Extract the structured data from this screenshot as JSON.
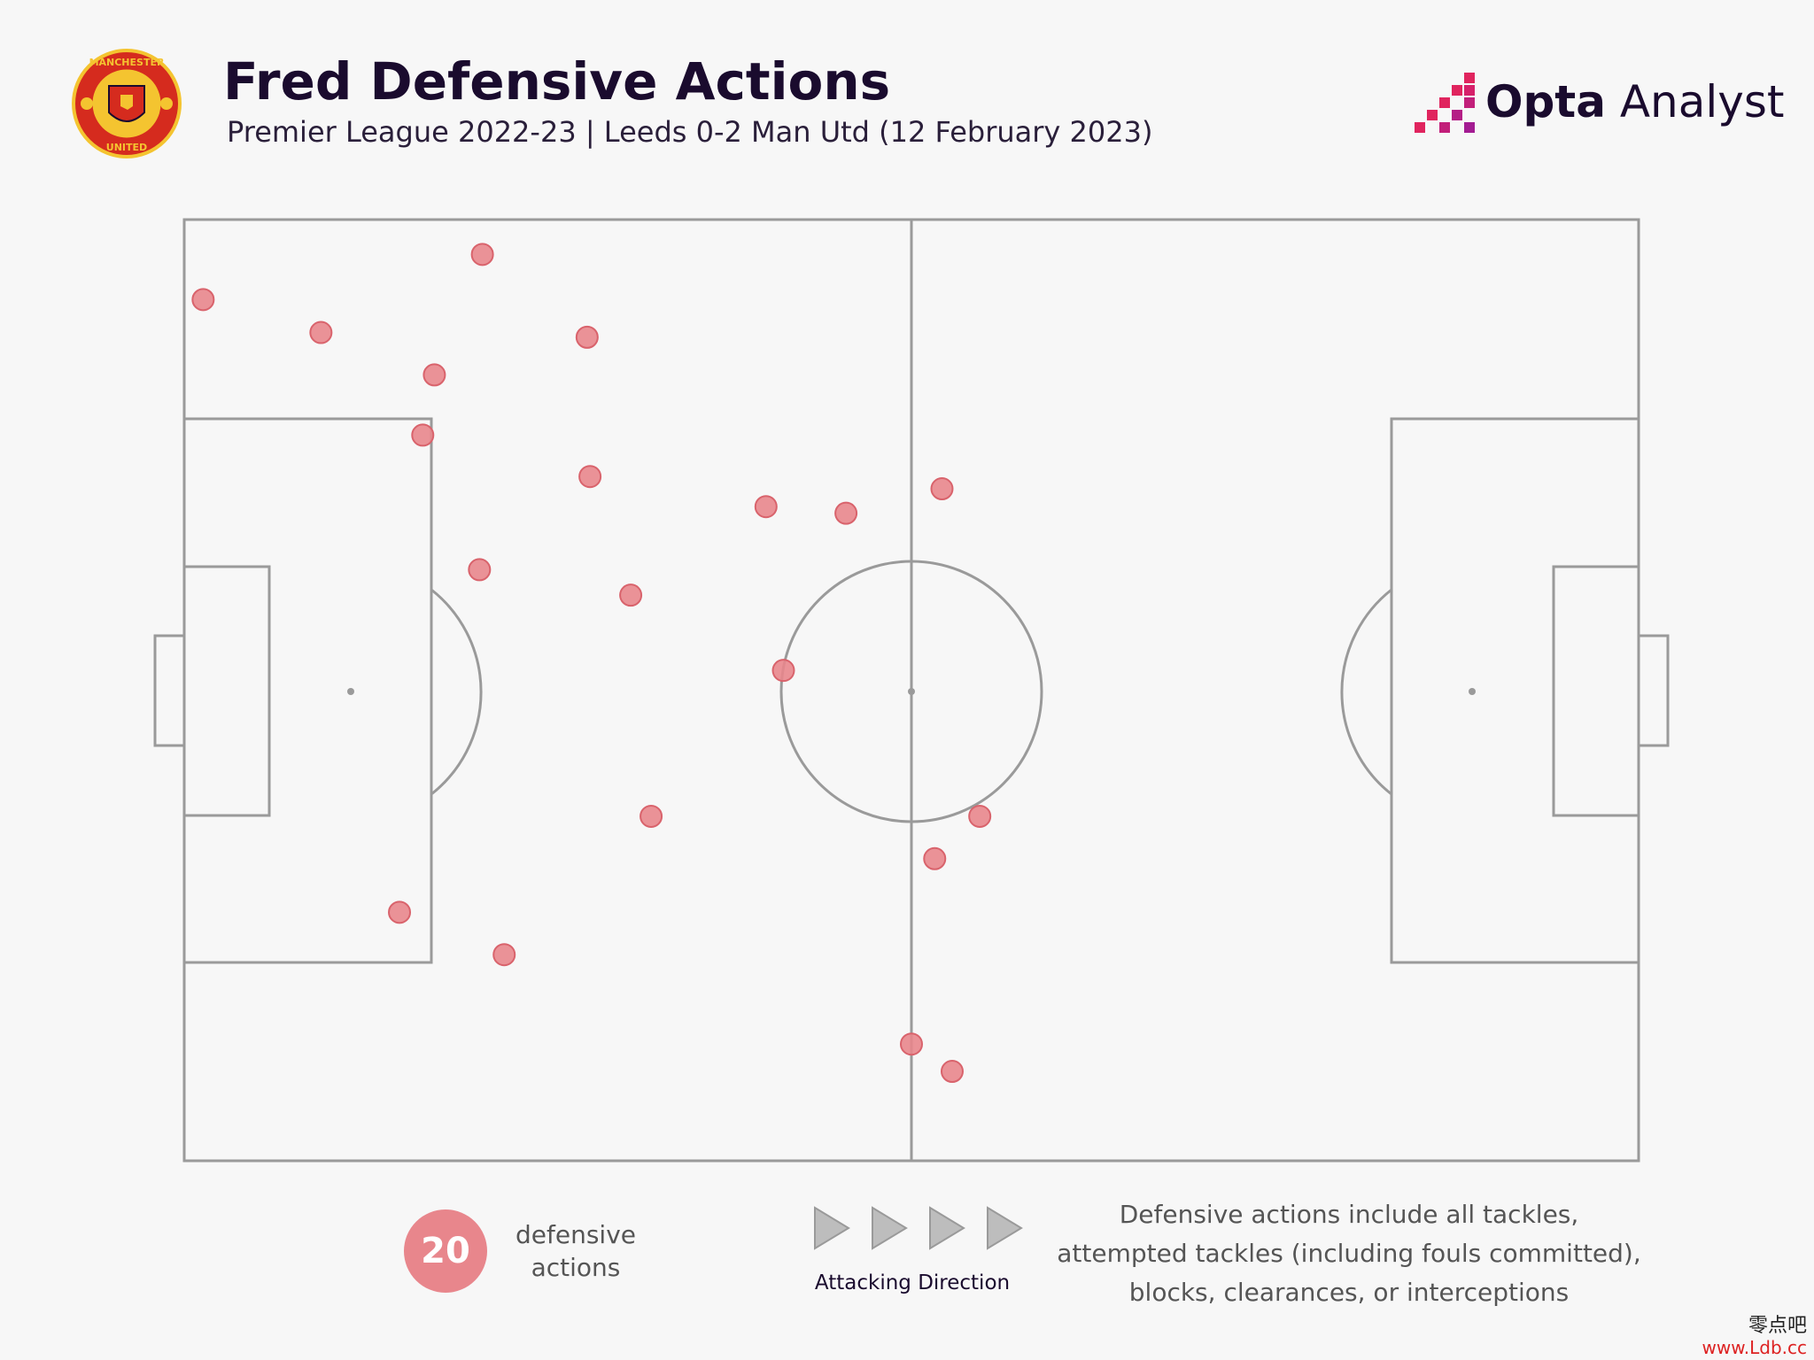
{
  "header": {
    "title": "Fred Defensive Actions",
    "subtitle": "Premier League 2022-23 | Leeds 0-2 Man Utd (12 February 2023)",
    "brand_bold": "Opta",
    "brand_rest": " Analyst",
    "crest_ring_top": "MANCHESTER",
    "crest_ring_bottom": "UNITED"
  },
  "chart_data": {
    "type": "scatter",
    "title": "Fred Defensive Actions",
    "x_axis": "pitch length (0 = own goal line, 100 = opponent goal line)",
    "y_axis": "pitch width (0 = top touchline, 100 = bottom touchline)",
    "xlim": [
      0,
      100
    ],
    "ylim": [
      0,
      100
    ],
    "marker_color": "#e8868c",
    "points": [
      {
        "x": 1.3,
        "y": 8.5
      },
      {
        "x": 20.5,
        "y": 3.7
      },
      {
        "x": 9.4,
        "y": 12.0
      },
      {
        "x": 27.7,
        "y": 12.5
      },
      {
        "x": 17.2,
        "y": 16.5
      },
      {
        "x": 16.4,
        "y": 22.9
      },
      {
        "x": 27.9,
        "y": 27.3
      },
      {
        "x": 40.0,
        "y": 30.5
      },
      {
        "x": 45.5,
        "y": 31.2
      },
      {
        "x": 52.1,
        "y": 28.6
      },
      {
        "x": 20.3,
        "y": 37.2
      },
      {
        "x": 30.7,
        "y": 39.9
      },
      {
        "x": 41.2,
        "y": 47.9
      },
      {
        "x": 32.1,
        "y": 63.4
      },
      {
        "x": 54.7,
        "y": 63.4
      },
      {
        "x": 51.6,
        "y": 67.9
      },
      {
        "x": 14.8,
        "y": 73.6
      },
      {
        "x": 22.0,
        "y": 78.1
      },
      {
        "x": 50.0,
        "y": 87.6
      },
      {
        "x": 52.8,
        "y": 90.5
      }
    ]
  },
  "legend": {
    "count": "20",
    "label_line1": "defensive",
    "label_line2": "actions"
  },
  "direction": {
    "label": "Attacking Direction"
  },
  "note": {
    "line1": "Defensive actions include all tackles,",
    "line2": "attempted tackles (including fouls committed),",
    "line3": "blocks, clearances, or interceptions"
  },
  "watermark": {
    "cn": "零点吧",
    "url": "www.Ldb.cc"
  },
  "colors": {
    "title": "#1a0b2e",
    "pitch_lines": "#9a9a9a",
    "marker": "#e8868c",
    "background": "#f7f7f7"
  }
}
